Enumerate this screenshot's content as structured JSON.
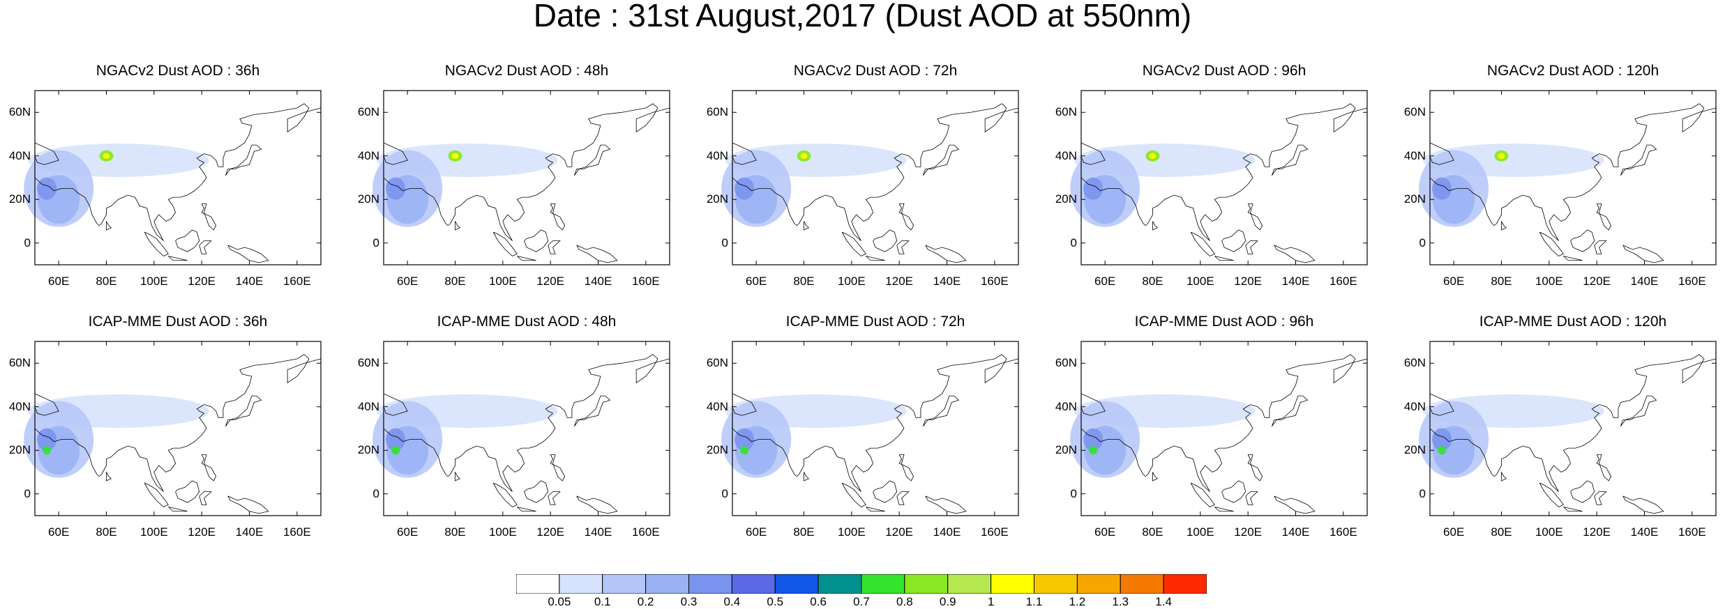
{
  "title": "Date : 31st August,2017 (Dust AOD at 550nm)",
  "panels": [
    {
      "title": "NGACv2 Dust AOD : 36h"
    },
    {
      "title": "NGACv2 Dust AOD : 48h"
    },
    {
      "title": "NGACv2 Dust AOD : 72h"
    },
    {
      "title": "NGACv2 Dust AOD : 96h"
    },
    {
      "title": "NGACv2 Dust AOD : 120h"
    },
    {
      "title": "ICAP-MME Dust AOD : 36h"
    },
    {
      "title": "ICAP-MME Dust AOD : 48h"
    },
    {
      "title": "ICAP-MME Dust AOD : 72h"
    },
    {
      "title": "ICAP-MME Dust AOD : 96h"
    },
    {
      "title": "ICAP-MME Dust AOD : 120h"
    }
  ],
  "map": {
    "lon_range": [
      50,
      170
    ],
    "lat_range": [
      -10,
      70
    ],
    "lat_labels": [
      "60N",
      "40N",
      "20N",
      "0"
    ],
    "lat_values": [
      60,
      40,
      20,
      0
    ],
    "lon_labels": [
      "60E",
      "80E",
      "100E",
      "120E",
      "140E",
      "160E"
    ],
    "lon_values": [
      60,
      80,
      100,
      120,
      140,
      160
    ]
  },
  "colorbar": {
    "labels": [
      "0.05",
      "0.1",
      "0.2",
      "0.3",
      "0.4",
      "0.5",
      "0.6",
      "0.7",
      "0.8",
      "0.9",
      "1",
      "1.1",
      "1.2",
      "1.3",
      "1.4"
    ],
    "colors": [
      "#ffffff",
      "#d7e3fc",
      "#b4c6f8",
      "#98b2f4",
      "#7a93ee",
      "#5b6ae4",
      "#1157e8",
      "#039190",
      "#33e42d",
      "#8ae823",
      "#b5e84e",
      "#ffff00",
      "#f8c800",
      "#f7a600",
      "#f47a00",
      "#ff2a00"
    ]
  }
}
